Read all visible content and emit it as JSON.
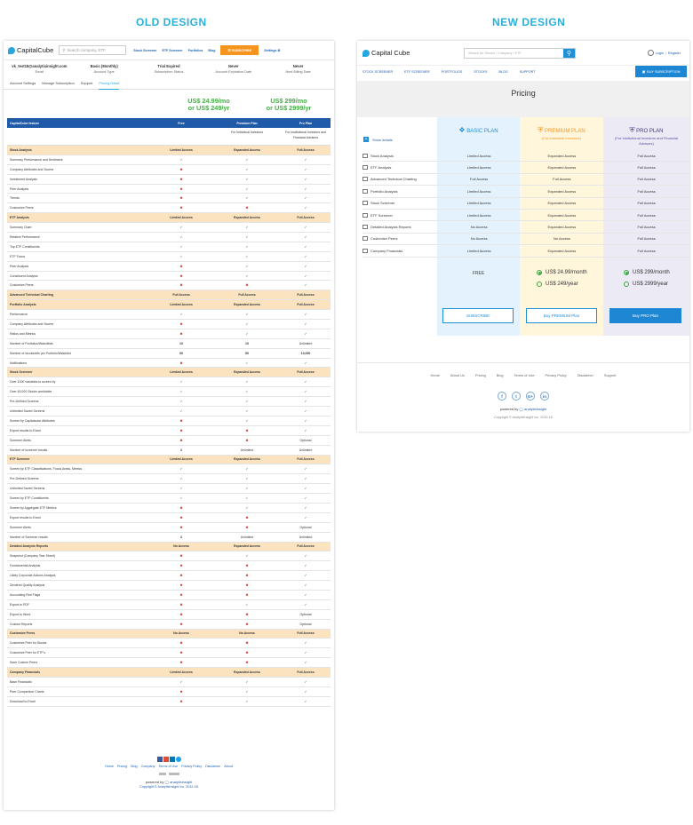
{
  "headers": {
    "old": "OLD DESIGN",
    "new": "NEW DESIGN"
  },
  "old": {
    "brand": "CapitalCube",
    "search_placeholder": "Search company, ETF",
    "nav": [
      "Stock Screener",
      "ETF Screener",
      "Portfolios",
      "Blog"
    ],
    "subscribe": "SUBSCRIBE",
    "settings": "Settings",
    "user": [
      {
        "value": "vk_test18@analytixinsight.com",
        "label": "Email"
      },
      {
        "value": "Basic (Monthly)",
        "label": "Account Type"
      },
      {
        "value": "Trial Expired",
        "label": "Subscription Status"
      },
      {
        "value": "Never",
        "label": "Account Expiration Date"
      },
      {
        "value": "Never",
        "label": "Next Billing Date"
      }
    ],
    "tabs": [
      "Account Settings",
      "Manage Subscription",
      "Support",
      "Pricing Detail"
    ],
    "price_premium": [
      "US$ 24.99/mo",
      "or US$ 249/yr"
    ],
    "price_pro": [
      "US$ 299/mo",
      "or US$ 2999/yr"
    ],
    "table_header": [
      "CapitalCube feature",
      "Free",
      "Premium Plan",
      "Pro Plan"
    ],
    "premium_for": "For Individual Investors",
    "pro_for": "For Institutional Investors and Financial Advisors",
    "rows": [
      {
        "s": true,
        "f": "Stock Analysis",
        "a": "Limited Access",
        "b": "Expanded Access",
        "c": "Full Access"
      },
      {
        "f": "Summary Performance and Sentiment",
        "a": "y",
        "b": "y",
        "c": "y"
      },
      {
        "f": "Company Attributes and Scores",
        "a": "x",
        "b": "y",
        "c": "y"
      },
      {
        "f": "Investment Analysis",
        "a": "x",
        "b": "y",
        "c": "y"
      },
      {
        "f": "Peer Analysis",
        "a": "x",
        "b": "y",
        "c": "y"
      },
      {
        "f": "Trends",
        "a": "x",
        "b": "y",
        "c": "y"
      },
      {
        "f": "Customize Peers",
        "a": "x",
        "b": "x",
        "c": "y"
      },
      {
        "s": true,
        "f": "ETF Analysis",
        "a": "Limited Access",
        "b": "Expanded Access",
        "c": "Full Access"
      },
      {
        "f": "Summary Chart",
        "a": "y",
        "b": "y",
        "c": "y"
      },
      {
        "f": "Relative Performance",
        "a": "y",
        "b": "y",
        "c": "y"
      },
      {
        "f": "Top ETF Constituents",
        "a": "y",
        "b": "y",
        "c": "y"
      },
      {
        "f": "ETF Focus",
        "a": "y",
        "b": "y",
        "c": "y"
      },
      {
        "f": "Peer Analysis",
        "a": "x",
        "b": "y",
        "c": "y"
      },
      {
        "f": "Constituent Analysis",
        "a": "x",
        "b": "y",
        "c": "y"
      },
      {
        "f": "Customize Peers",
        "a": "x",
        "b": "x",
        "c": "y"
      },
      {
        "s": true,
        "f": "Advanced Technical Charting",
        "a": "Full Access",
        "b": "Full Access",
        "c": "Full Access"
      },
      {
        "s": true,
        "f": "Portfolio Analysis",
        "a": "Limited Access",
        "b": "Expanded Access",
        "c": "Full Access"
      },
      {
        "f": "Performance",
        "a": "y",
        "b": "y",
        "c": "y"
      },
      {
        "f": "Company Attributes and Scores",
        "a": "x",
        "b": "y",
        "c": "y"
      },
      {
        "f": "Ratios and Metrics",
        "a": "x",
        "b": "y",
        "c": "y"
      },
      {
        "f": "Number of Portfolios/Watchlists",
        "a": "10",
        "b": "10",
        "c": "Unlimited"
      },
      {
        "f": "Number of stocks/etfs per Portfolio/Watchlist",
        "a": "50",
        "b": "50",
        "c": "10,000"
      },
      {
        "f": "Notifications",
        "a": "x",
        "b": "y",
        "c": "y"
      },
      {
        "s": true,
        "f": "Stock Screener",
        "a": "Limited Access",
        "b": "Expanded Access",
        "c": "Full Access"
      },
      {
        "f": "Over 1000 variables to screen by",
        "a": "y",
        "b": "y",
        "c": "y"
      },
      {
        "f": "Over 45,000 Stocks worldwide",
        "a": "y",
        "b": "y",
        "c": "y"
      },
      {
        "f": "Pre-Defined Screens",
        "a": "y",
        "b": "y",
        "c": "y"
      },
      {
        "f": "Unlimited Saved Screens",
        "a": "y",
        "b": "y",
        "c": "y"
      },
      {
        "f": "Screen by Capitalcube Attributes",
        "a": "x",
        "b": "y",
        "c": "y"
      },
      {
        "f": "Export results to Excel",
        "a": "x",
        "b": "x",
        "c": "y"
      },
      {
        "f": "Screener Alerts",
        "a": "x",
        "b": "x",
        "c": "Optional"
      },
      {
        "f": "Number of screener results",
        "a": "3",
        "b": "Unlimited",
        "c": "Unlimited"
      },
      {
        "s": true,
        "f": "ETF Screener",
        "a": "Limited Access",
        "b": "Expanded Access",
        "c": "Full Access"
      },
      {
        "f": "Screen by ETF Classifications, Focus Areas, Metrics",
        "a": "y",
        "b": "y",
        "c": "y"
      },
      {
        "f": "Pre-Defined Screens",
        "a": "y",
        "b": "y",
        "c": "y"
      },
      {
        "f": "Unlimited Saved Screens",
        "a": "y",
        "b": "y",
        "c": "y"
      },
      {
        "f": "Screen by ETF Constituents",
        "a": "y",
        "b": "y",
        "c": "y"
      },
      {
        "f": "Screen by Aggregate ETF Metrics",
        "a": "x",
        "b": "y",
        "c": "y"
      },
      {
        "f": "Export results to Excel",
        "a": "x",
        "b": "x",
        "c": "y"
      },
      {
        "f": "Screener Alerts",
        "a": "x",
        "b": "x",
        "c": "Optional"
      },
      {
        "f": "Number of Screener results",
        "a": "3",
        "b": "Unlimited",
        "c": "Unlimited"
      },
      {
        "s": true,
        "f": "Detailed Analysis Reports",
        "a": "No Access",
        "b": "Expanded Access",
        "c": "Full Access"
      },
      {
        "f": "Snapshot (Company Tear Sheet)",
        "a": "x",
        "b": "y",
        "c": "y"
      },
      {
        "f": "Fundamental Analysis",
        "a": "x",
        "b": "x",
        "c": "y"
      },
      {
        "f": "Likely Corporate Actions Analysis",
        "a": "x",
        "b": "x",
        "c": "y"
      },
      {
        "f": "Dividend Quality Analysis",
        "a": "x",
        "b": "x",
        "c": "y"
      },
      {
        "f": "Accounting Red Flags",
        "a": "x",
        "b": "x",
        "c": "y"
      },
      {
        "f": "Export to PDF",
        "a": "x",
        "b": "y",
        "c": "y"
      },
      {
        "f": "Export to Word",
        "a": "x",
        "b": "x",
        "c": "Optional"
      },
      {
        "f": "Custom Reports",
        "a": "x",
        "b": "x",
        "c": "Optional"
      },
      {
        "s": true,
        "f": "Customize Peers",
        "a": "No Access",
        "b": "No Access",
        "c": "Full Access"
      },
      {
        "f": "Customize Peer for Stocks",
        "a": "x",
        "b": "x",
        "c": "y"
      },
      {
        "f": "Customize Peer for ETF's",
        "a": "x",
        "b": "x",
        "c": "y"
      },
      {
        "f": "Save Custom Peers",
        "a": "x",
        "b": "x",
        "c": "y"
      },
      {
        "s": true,
        "f": "Company Financials",
        "a": "Limited Access",
        "b": "Expanded Access",
        "c": "Full Access"
      },
      {
        "f": "Base Financials",
        "a": "y",
        "b": "y",
        "c": "y"
      },
      {
        "f": "Peer Comparison Charts",
        "a": "x",
        "b": "y",
        "c": "y"
      },
      {
        "f": "Download to Excel",
        "a": "x",
        "b": "y",
        "c": "y"
      }
    ],
    "footer_nav": [
      "Home",
      "Pricing",
      "Blog",
      "Company",
      "Terms of Use",
      "Privacy Policy",
      "Disclaimer",
      "About"
    ],
    "powered": "powered by",
    "powered_brand": "analytixinsight",
    "copyright": "Copyright © AnalytixInsight Inc. 2012-18"
  },
  "new": {
    "brand": "Capital Cube",
    "search_placeholder": "Search for Stocks / Company / ETF",
    "login": "Login",
    "register": "Register",
    "nav": [
      "STOCK SCREENER",
      "ETF SCREENER",
      "PORTFOLIOS",
      "STOCKS",
      "BLOG",
      "SUPPORT"
    ],
    "buy_subscription": "BUY SUBSCRIPTION",
    "title": "Pricing",
    "show_details": "Show details",
    "plans": [
      {
        "name": "BASIC PLAN",
        "sub": ""
      },
      {
        "name": "PREMIUM PLAN",
        "sub": "(For individual Investors)"
      },
      {
        "name": "PRO PLAN",
        "sub": "(For Institutional Investors and Financial Advisors)"
      }
    ],
    "features": [
      {
        "f": "Stock Analysis",
        "a": "Limited Access",
        "b": "Expanded Access",
        "c": "Full Access"
      },
      {
        "f": "ETF Analysis",
        "a": "Limited Access",
        "b": "Expanded Access",
        "c": "Full Access"
      },
      {
        "f": "Advanced Technical Charting",
        "a": "Full Access",
        "b": "Full Access",
        "c": "Full Access"
      },
      {
        "f": "Portfolio Analysis",
        "a": "Limited Access",
        "b": "Expanded Access",
        "c": "Full Access"
      },
      {
        "f": "Stock Screener",
        "a": "Limited Access",
        "b": "Expanded Access",
        "c": "Full Access"
      },
      {
        "f": "ETF Screener",
        "a": "Limited Access",
        "b": "Expanded Access",
        "c": "Full Access"
      },
      {
        "f": "Detailed Analysis Reports",
        "a": "No Access",
        "b": "Expanded Access",
        "c": "Full Access"
      },
      {
        "f": "Customize Peers",
        "a": "No Access",
        "b": "No Access",
        "c": "Full Access"
      },
      {
        "f": "Company Financials",
        "a": "Limited Access",
        "b": "Expanded Access",
        "c": "Full Access"
      }
    ],
    "free": "FREE",
    "premium_prices": [
      "US$ 24.99/month",
      "US$ 249/year"
    ],
    "pro_prices": [
      "US$ 299/month",
      "US$ 2999/year"
    ],
    "btn_subscribe": "SUBSCRIBE",
    "btn_premium": "Buy PREMIUM Plan",
    "btn_pro": "Buy PRO Plan",
    "footer_nav": [
      "Home",
      "About Us",
      "Pricing",
      "Blog",
      "Terms of Use",
      "Privacy Policy",
      "Disclaimer",
      "Support"
    ],
    "social": [
      "f",
      "t",
      "G+",
      "in"
    ],
    "powered": "powered by",
    "powered_brand": "analytixinsight",
    "copyright": "Copyright © AnalytixInsight Inc. 2010-18"
  },
  "colors": {
    "accent": "#29b0d9",
    "table_header": "#1f5aa8",
    "section_row": "#fbe3c0",
    "check": "#3aa845",
    "cross": "#d93025",
    "orange": "#f7941d"
  }
}
